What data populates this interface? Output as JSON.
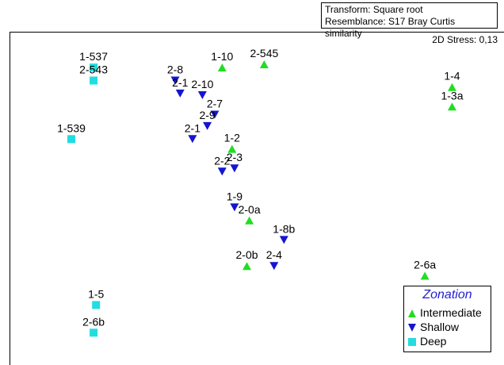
{
  "header": {
    "transform": "Transform: Square root",
    "resemblance": "Resemblance: S17 Bray Curtis similarity"
  },
  "stress": "2D Stress: 0,13",
  "colors": {
    "Intermediate": "#22dd22",
    "Shallow": "#1515d0",
    "Deep": "#22dde0",
    "legend_title": "#1f1fd0"
  },
  "legend": {
    "title": "Zonation",
    "items": [
      {
        "label": "Intermediate",
        "group": "Intermediate",
        "shape": "triangle-up"
      },
      {
        "label": "Shallow",
        "group": "Shallow",
        "shape": "triangle-down"
      },
      {
        "label": "Deep",
        "group": "Deep",
        "shape": "square"
      }
    ]
  },
  "chart_data": {
    "type": "scatter",
    "title": "",
    "xlabel": "",
    "ylabel": "",
    "xlim": [
      0,
      100
    ],
    "ylim": [
      0,
      100
    ],
    "grid": false,
    "legend_position": "bottom-right",
    "points": [
      {
        "label": "1-537",
        "group": "Deep",
        "x": 17,
        "y": 89
      },
      {
        "label": "2-543",
        "group": "Deep",
        "x": 17,
        "y": 85
      },
      {
        "label": "1-539",
        "group": "Deep",
        "x": 12.5,
        "y": 67
      },
      {
        "label": "1-5",
        "group": "Deep",
        "x": 17.5,
        "y": 16
      },
      {
        "label": "2-6b",
        "group": "Deep",
        "x": 17,
        "y": 7.5
      },
      {
        "label": "2-8",
        "group": "Shallow",
        "x": 33.5,
        "y": 85
      },
      {
        "label": "2-1",
        "group": "Shallow",
        "x": 34.5,
        "y": 81
      },
      {
        "label": "2-10",
        "group": "Shallow",
        "x": 39,
        "y": 80.5
      },
      {
        "label": "2-7",
        "group": "Shallow",
        "x": 41.5,
        "y": 74.5
      },
      {
        "label": "2-9",
        "group": "Shallow",
        "x": 40,
        "y": 71
      },
      {
        "label": "2-1",
        "group": "Shallow",
        "x": 37,
        "y": 67
      },
      {
        "label": "2-2",
        "group": "Shallow",
        "x": 43,
        "y": 57
      },
      {
        "label": "2-3",
        "group": "Shallow",
        "x": 45.5,
        "y": 58
      },
      {
        "label": "1-9",
        "group": "Shallow",
        "x": 45.5,
        "y": 46
      },
      {
        "label": "1-8b",
        "group": "Shallow",
        "x": 55.5,
        "y": 36
      },
      {
        "label": "2-4",
        "group": "Shallow",
        "x": 53.5,
        "y": 28
      },
      {
        "label": "1-10",
        "group": "Intermediate",
        "x": 43,
        "y": 89
      },
      {
        "label": "2-545",
        "group": "Intermediate",
        "x": 51.5,
        "y": 90
      },
      {
        "label": "1-4",
        "group": "Intermediate",
        "x": 89.5,
        "y": 83
      },
      {
        "label": "1-3a",
        "group": "Intermediate",
        "x": 89.5,
        "y": 77
      },
      {
        "label": "1-2",
        "group": "Intermediate",
        "x": 45,
        "y": 64
      },
      {
        "label": "2-0a",
        "group": "Intermediate",
        "x": 48.5,
        "y": 42
      },
      {
        "label": "2-0b",
        "group": "Intermediate",
        "x": 48,
        "y": 28
      },
      {
        "label": "2-6a",
        "group": "Intermediate",
        "x": 84,
        "y": 25
      }
    ]
  }
}
